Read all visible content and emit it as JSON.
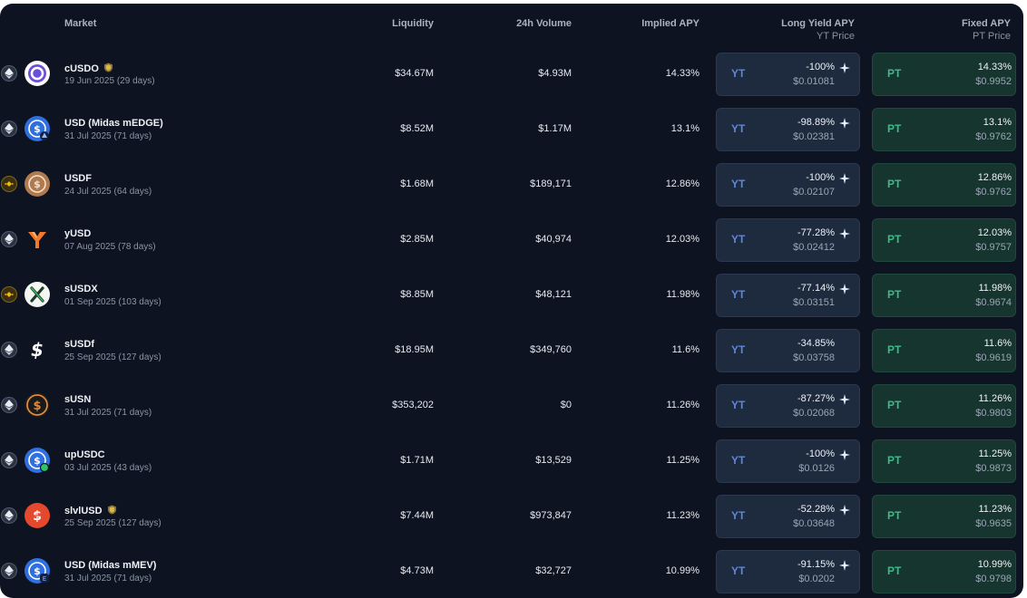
{
  "headers": {
    "market": "Market",
    "liquidity": "Liquidity",
    "volume": "24h Volume",
    "implied": "Implied APY",
    "long_yield": "Long Yield APY",
    "yt_price": "YT Price",
    "fixed": "Fixed APY",
    "pt_price": "PT Price"
  },
  "labels": {
    "yt": "YT",
    "pt": "PT"
  },
  "markets": [
    {
      "name": "cUSDO",
      "date": "19 Jun 2025",
      "days": "(29 days)",
      "liquidity": "$34.67M",
      "volume": "$4.93M",
      "implied": "14.33%",
      "long_yield": "-100%",
      "yt_price": "$0.01081",
      "fixed": "14.33%",
      "pt_price": "$0.9952",
      "chain": "ethereum",
      "token_icon": "cusdo-icon"
    },
    {
      "name": "USD (Midas mEDGE)",
      "date": "31 Jul 2025",
      "days": "(71 days)",
      "liquidity": "$8.52M",
      "volume": "$1.17M",
      "implied": "13.1%",
      "long_yield": "-98.89%",
      "yt_price": "$0.02381",
      "fixed": "13.1%",
      "pt_price": "$0.9762",
      "chain": "ethereum",
      "token_icon": "midas-medge-icon"
    },
    {
      "name": "USDF",
      "date": "24 Jul 2025",
      "days": "(64 days)",
      "liquidity": "$1.68M",
      "volume": "$189,171",
      "implied": "12.86%",
      "long_yield": "-100%",
      "yt_price": "$0.02107",
      "fixed": "12.86%",
      "pt_price": "$0.9762",
      "chain": "bnb",
      "token_icon": "usdf-icon"
    },
    {
      "name": "yUSD",
      "date": "07 Aug 2025",
      "days": "(78 days)",
      "liquidity": "$2.85M",
      "volume": "$40,974",
      "implied": "12.03%",
      "long_yield": "-77.28%",
      "yt_price": "$0.02412",
      "fixed": "12.03%",
      "pt_price": "$0.9757",
      "chain": "ethereum",
      "token_icon": "yusd-icon"
    },
    {
      "name": "sUSDX",
      "date": "01 Sep 2025",
      "days": "(103 days)",
      "liquidity": "$8.85M",
      "volume": "$48,121",
      "implied": "11.98%",
      "long_yield": "-77.14%",
      "yt_price": "$0.03151",
      "fixed": "11.98%",
      "pt_price": "$0.9674",
      "chain": "bnb",
      "token_icon": "susdx-icon"
    },
    {
      "name": "sUSDf",
      "date": "25 Sep 2025",
      "days": "(127 days)",
      "liquidity": "$18.95M",
      "volume": "$349,760",
      "implied": "11.6%",
      "long_yield": "-34.85%",
      "yt_price": "$0.03758",
      "fixed": "11.6%",
      "pt_price": "$0.9619",
      "chain": "ethereum",
      "token_icon": "susdf-icon"
    },
    {
      "name": "sUSN",
      "date": "31 Jul 2025",
      "days": "(71 days)",
      "liquidity": "$353,202",
      "volume": "$0",
      "implied": "11.26%",
      "long_yield": "-87.27%",
      "yt_price": "$0.02068",
      "fixed": "11.26%",
      "pt_price": "$0.9803",
      "chain": "ethereum",
      "token_icon": "susn-icon"
    },
    {
      "name": "upUSDC",
      "date": "03 Jul 2025",
      "days": "(43 days)",
      "liquidity": "$1.71M",
      "volume": "$13,529",
      "implied": "11.25%",
      "long_yield": "-100%",
      "yt_price": "$0.0126",
      "fixed": "11.25%",
      "pt_price": "$0.9873",
      "chain": "ethereum",
      "token_icon": "upusdc-icon"
    },
    {
      "name": "slvlUSD",
      "date": "25 Sep 2025",
      "days": "(127 days)",
      "liquidity": "$7.44M",
      "volume": "$973,847",
      "implied": "11.23%",
      "long_yield": "-52.28%",
      "yt_price": "$0.03648",
      "fixed": "11.23%",
      "pt_price": "$0.9635",
      "chain": "ethereum",
      "token_icon": "slvlusd-icon"
    },
    {
      "name": "USD (Midas mMEV)",
      "date": "31 Jul 2025",
      "days": "(71 days)",
      "liquidity": "$4.73M",
      "volume": "$32,727",
      "implied": "10.99%",
      "long_yield": "-91.15%",
      "yt_price": "$0.0202",
      "fixed": "10.99%",
      "pt_price": "$0.9798",
      "chain": "ethereum",
      "token_icon": "midas-mmev-icon"
    }
  ]
}
